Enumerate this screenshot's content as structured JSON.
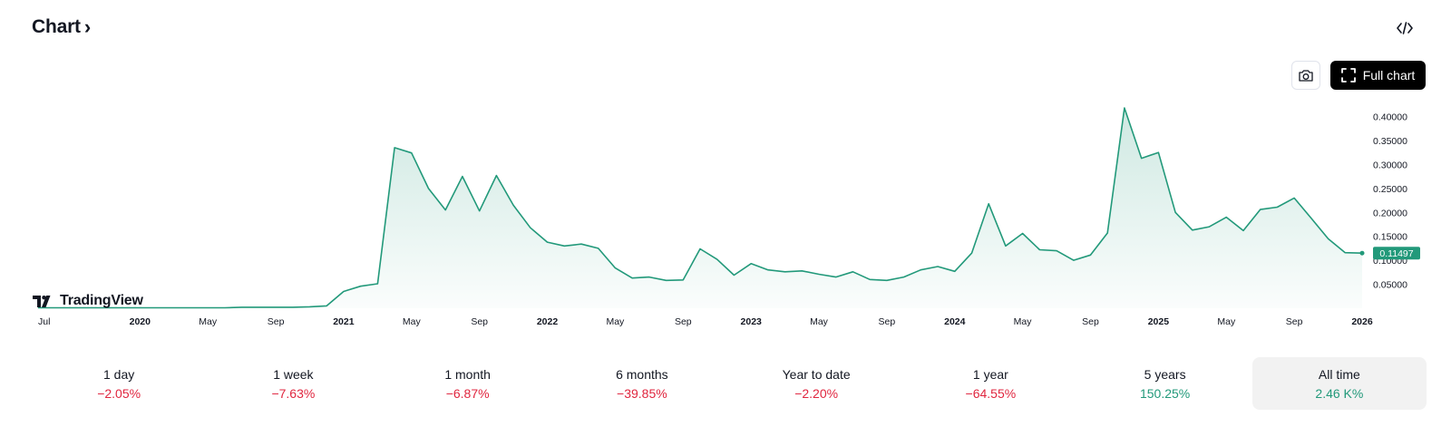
{
  "header": {
    "title": "Chart",
    "chevron": "›"
  },
  "buttons": {
    "embed_icon": "code-icon",
    "camera_icon": "camera-icon",
    "full_chart_icon": "fullscreen-icon",
    "full_chart_label": "Full chart"
  },
  "logo": {
    "text": "TradingView"
  },
  "chart_data": {
    "type": "area",
    "x_labels": [
      "Jul",
      "2020",
      "May",
      "Sep",
      "2021",
      "May",
      "Sep",
      "2022",
      "May",
      "Sep",
      "2023",
      "May",
      "Sep",
      "2024",
      "May",
      "Sep",
      "2025",
      "May",
      "Sep",
      "2026"
    ],
    "x_labels_bold": [
      "2020",
      "2021",
      "2022",
      "2023",
      "2024",
      "2025",
      "2026"
    ],
    "y_ticks": [
      "0.40000",
      "0.35000",
      "0.30000",
      "0.25000",
      "0.20000",
      "0.15000",
      "0.10000",
      "0.05000"
    ],
    "ylim": [
      0,
      0.42
    ],
    "x_range": [
      "2019-07",
      "2026-01"
    ],
    "series": [
      {
        "points": [
          [
            "2019-07",
            0.001
          ],
          [
            "2019-08",
            0.001
          ],
          [
            "2019-09",
            0.001
          ],
          [
            "2019-10",
            0.001
          ],
          [
            "2019-11",
            0.001
          ],
          [
            "2019-12",
            0.001
          ],
          [
            "2020-01",
            0.001
          ],
          [
            "2020-02",
            0.001
          ],
          [
            "2020-03",
            0.001
          ],
          [
            "2020-04",
            0.001
          ],
          [
            "2020-05",
            0.001
          ],
          [
            "2020-06",
            0.001
          ],
          [
            "2020-07",
            0.002
          ],
          [
            "2020-08",
            0.002
          ],
          [
            "2020-09",
            0.002
          ],
          [
            "2020-10",
            0.002
          ],
          [
            "2020-11",
            0.003
          ],
          [
            "2020-12",
            0.005
          ],
          [
            "2021-01",
            0.035
          ],
          [
            "2021-02",
            0.046
          ],
          [
            "2021-03",
            0.051
          ],
          [
            "2021-04",
            0.335
          ],
          [
            "2021-05",
            0.324
          ],
          [
            "2021-06",
            0.25
          ],
          [
            "2021-07",
            0.205
          ],
          [
            "2021-08",
            0.275
          ],
          [
            "2021-09",
            0.203
          ],
          [
            "2021-10",
            0.277
          ],
          [
            "2021-11",
            0.215
          ],
          [
            "2021-12",
            0.168
          ],
          [
            "2022-01",
            0.138
          ],
          [
            "2022-02",
            0.13
          ],
          [
            "2022-03",
            0.134
          ],
          [
            "2022-04",
            0.125
          ],
          [
            "2022-05",
            0.084
          ],
          [
            "2022-06",
            0.063
          ],
          [
            "2022-07",
            0.065
          ],
          [
            "2022-08",
            0.058
          ],
          [
            "2022-09",
            0.059
          ],
          [
            "2022-10",
            0.124
          ],
          [
            "2022-11",
            0.102
          ],
          [
            "2022-12",
            0.069
          ],
          [
            "2023-01",
            0.093
          ],
          [
            "2023-02",
            0.08
          ],
          [
            "2023-03",
            0.076
          ],
          [
            "2023-04",
            0.078
          ],
          [
            "2023-05",
            0.071
          ],
          [
            "2023-06",
            0.065
          ],
          [
            "2023-07",
            0.076
          ],
          [
            "2023-08",
            0.06
          ],
          [
            "2023-09",
            0.058
          ],
          [
            "2023-10",
            0.065
          ],
          [
            "2023-11",
            0.08
          ],
          [
            "2023-12",
            0.087
          ],
          [
            "2024-01",
            0.077
          ],
          [
            "2024-02",
            0.115
          ],
          [
            "2024-03",
            0.218
          ],
          [
            "2024-04",
            0.13
          ],
          [
            "2024-05",
            0.156
          ],
          [
            "2024-06",
            0.122
          ],
          [
            "2024-07",
            0.12
          ],
          [
            "2024-08",
            0.1
          ],
          [
            "2024-09",
            0.111
          ],
          [
            "2024-10",
            0.157
          ],
          [
            "2024-11",
            0.418
          ],
          [
            "2024-12",
            0.313
          ],
          [
            "2025-01",
            0.325
          ],
          [
            "2025-02",
            0.2
          ],
          [
            "2025-03",
            0.163
          ],
          [
            "2025-04",
            0.17
          ],
          [
            "2025-05",
            0.19
          ],
          [
            "2025-06",
            0.162
          ],
          [
            "2025-07",
            0.206
          ],
          [
            "2025-08",
            0.211
          ],
          [
            "2025-09",
            0.23
          ],
          [
            "2025-10",
            0.188
          ],
          [
            "2025-11",
            0.145
          ],
          [
            "2025-12",
            0.116
          ],
          [
            "2026-01",
            0.11497
          ]
        ]
      }
    ],
    "last_value": "0.11497",
    "line_color": "#22997a",
    "fill_color": "#22997a",
    "grid": false
  },
  "periods": [
    {
      "label": "1 day",
      "value": "−2.05%",
      "trend": "neg",
      "active": false
    },
    {
      "label": "1 week",
      "value": "−7.63%",
      "trend": "neg",
      "active": false
    },
    {
      "label": "1 month",
      "value": "−6.87%",
      "trend": "neg",
      "active": false
    },
    {
      "label": "6 months",
      "value": "−39.85%",
      "trend": "neg",
      "active": false
    },
    {
      "label": "Year to date",
      "value": "−2.20%",
      "trend": "neg",
      "active": false
    },
    {
      "label": "1 year",
      "value": "−64.55%",
      "trend": "neg",
      "active": false
    },
    {
      "label": "5 years",
      "value": "150.25%",
      "trend": "pos",
      "active": false
    },
    {
      "label": "All time",
      "value": "2.46 K%",
      "trend": "pos",
      "active": true
    }
  ]
}
